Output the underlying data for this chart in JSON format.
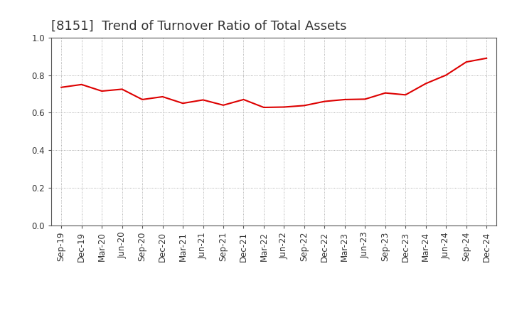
{
  "title": "[8151]  Trend of Turnover Ratio of Total Assets",
  "x_labels": [
    "Sep-19",
    "Dec-19",
    "Mar-20",
    "Jun-20",
    "Sep-20",
    "Dec-20",
    "Mar-21",
    "Jun-21",
    "Sep-21",
    "Dec-21",
    "Mar-22",
    "Jun-22",
    "Sep-22",
    "Dec-22",
    "Mar-23",
    "Jun-23",
    "Sep-23",
    "Dec-23",
    "Mar-24",
    "Jun-24",
    "Sep-24",
    "Dec-24"
  ],
  "values": [
    0.735,
    0.75,
    0.715,
    0.725,
    0.67,
    0.685,
    0.65,
    0.668,
    0.64,
    0.67,
    0.628,
    0.63,
    0.638,
    0.66,
    0.67,
    0.672,
    0.705,
    0.695,
    0.755,
    0.8,
    0.87,
    0.89
  ],
  "ylim": [
    0.0,
    1.0
  ],
  "yticks": [
    0.0,
    0.2,
    0.4,
    0.6,
    0.8,
    1.0
  ],
  "line_color": "#dd0000",
  "line_width": 1.5,
  "background_color": "#ffffff",
  "grid_color": "#999999",
  "title_fontsize": 13,
  "tick_fontsize": 8.5,
  "title_color": "#333333"
}
